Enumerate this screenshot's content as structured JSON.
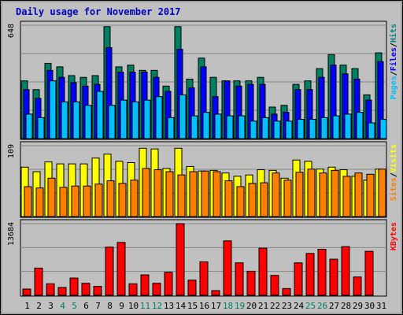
{
  "chart_data": {
    "type": "bar",
    "title": "Daily usage for November 2017",
    "categories": [
      "1",
      "2",
      "3",
      "4",
      "5",
      "6",
      "7",
      "8",
      "9",
      "10",
      "11",
      "12",
      "13",
      "14",
      "15",
      "16",
      "17",
      "18",
      "19",
      "20",
      "21",
      "22",
      "23",
      "24",
      "25",
      "26",
      "27",
      "28",
      "29",
      "30",
      "31"
    ],
    "weekend_days": [
      "4",
      "5",
      "11",
      "12",
      "18",
      "19",
      "25",
      "26"
    ],
    "panels": [
      {
        "name": "hits-files-pages",
        "max_label": "648",
        "max": 648,
        "right_labels": [
          "Pages",
          "/",
          "Files",
          "/",
          "Hits"
        ],
        "right_colors": [
          "#00c0ff",
          "#000000",
          "#0000ff",
          "#000000",
          "#008080"
        ],
        "series": [
          {
            "name": "Hits",
            "color": "#008060",
            "values": [
              330,
              280,
              430,
              410,
              360,
              350,
              360,
              640,
              410,
              420,
              390,
              390,
              300,
              640,
              340,
              460,
              350,
              330,
              330,
              330,
              350,
              180,
              190,
              310,
              330,
              400,
              480,
              420,
              400,
              250,
              490
            ]
          },
          {
            "name": "Files",
            "color": "#0000ff",
            "values": [
              280,
              230,
              390,
              350,
              320,
              300,
              310,
              520,
              380,
              380,
              380,
              350,
              270,
              510,
              290,
              410,
              240,
              330,
              300,
              310,
              310,
              140,
              150,
              280,
              280,
              350,
              420,
              370,
              340,
              220,
              440
            ]
          },
          {
            "name": "Pages",
            "color": "#00c0ff",
            "values": [
              140,
              120,
              330,
              210,
              210,
              190,
              270,
              190,
              220,
              210,
              220,
              240,
              120,
              250,
              130,
              150,
              140,
              130,
              130,
              100,
              120,
              100,
              100,
              110,
              110,
              120,
              130,
              140,
              150,
              90,
              110
            ]
          }
        ]
      },
      {
        "name": "visits-sites",
        "max_label": "109",
        "max": 109,
        "right_labels": [
          "Sites",
          "/",
          "Visits"
        ],
        "right_colors": [
          "#ff8000",
          "#000000",
          "#ffff00"
        ],
        "series": [
          {
            "name": "Visits",
            "color": "#ffff00",
            "values": [
              76,
              69,
              84,
              81,
              81,
              81,
              90,
              96,
              85,
              83,
              105,
              104,
              74,
              105,
              77,
              70,
              71,
              67,
              62,
              64,
              72,
              71,
              59,
              87,
              85,
              73,
              76,
              72,
              62,
              56,
              73
            ]
          },
          {
            "name": "Sites",
            "color": "#ff8000",
            "values": [
              46,
              44,
              59,
              45,
              47,
              47,
              50,
              55,
              51,
              56,
              74,
              72,
              69,
              64,
              69,
              70,
              69,
              55,
              46,
              51,
              52,
              67,
              56,
              68,
              73,
              67,
              71,
              62,
              67,
              65,
              73
            ]
          }
        ]
      },
      {
        "name": "kbytes",
        "max_label": "13684",
        "max": 13684,
        "right_labels": [
          "KBytes"
        ],
        "right_colors": [
          "#ff0000"
        ],
        "series": [
          {
            "name": "KBytes",
            "color": "#ff0000",
            "values": [
              1200,
              5200,
              2200,
              1500,
              3300,
              2300,
              1700,
              9200,
              10100,
              2200,
              3900,
              2300,
              4400,
              13684,
              2900,
              6400,
              900,
              10400,
              6200,
              4600,
              9000,
              3800,
              1300,
              6200,
              8000,
              8800,
              6900,
              9300,
              3500,
              8400,
              0
            ]
          }
        ]
      }
    ],
    "grid": true
  }
}
